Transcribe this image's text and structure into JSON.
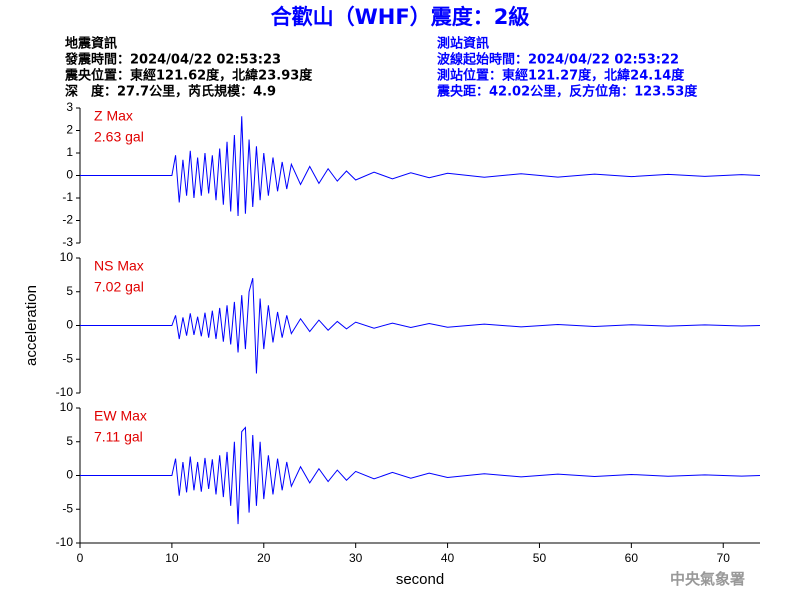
{
  "header": {
    "title": "合歡山（WHF）震度：2級",
    "left": [
      "地震資訊",
      "發震時間：2024/04/22 02:53:23",
      "震央位置：東經121.62度，北緯23.93度",
      "深　度：27.7公里，芮氏規模：4.9"
    ],
    "right": [
      "測站資訊",
      "波線起始時間：2024/04/22 02:53:22",
      "測站位置：東經121.27度，北緯24.14度",
      "震央距：42.02公里，反方位角：123.53度"
    ]
  },
  "footer": "中央氣象署",
  "chart_data": [
    {
      "type": "line",
      "annotations": [
        "Z Max",
        "2.63 gal"
      ],
      "color": "#0000ff",
      "xlim": [
        0,
        74
      ],
      "ylim": [
        -3,
        3
      ],
      "yticks": [
        -3,
        -2,
        -1,
        0,
        1,
        2,
        3
      ],
      "x": [
        0,
        10,
        10.4,
        10.8,
        11.2,
        11.6,
        12,
        12.4,
        12.8,
        13.2,
        13.6,
        14,
        14.4,
        14.8,
        15.2,
        15.6,
        16,
        16.4,
        16.8,
        17.2,
        17.6,
        18,
        18.4,
        18.8,
        19.2,
        19.6,
        20,
        20.5,
        21,
        21.5,
        22,
        22.5,
        23,
        24,
        25,
        26,
        27,
        28,
        29,
        30,
        32,
        34,
        36,
        38,
        40,
        44,
        48,
        52,
        56,
        60,
        64,
        68,
        72,
        74
      ],
      "values": [
        0,
        0,
        0.9,
        -1.2,
        0.7,
        -0.9,
        1.1,
        -1.0,
        0.8,
        -0.9,
        1.0,
        -0.8,
        0.9,
        -1.1,
        1.2,
        -1.3,
        1.5,
        -1.6,
        1.8,
        -1.8,
        2.63,
        -1.7,
        1.6,
        -1.4,
        1.3,
        -1.1,
        1.0,
        -0.9,
        0.8,
        -0.7,
        0.6,
        -0.6,
        0.5,
        -0.4,
        0.4,
        -0.35,
        0.3,
        -0.25,
        0.2,
        -0.2,
        0.15,
        -0.15,
        0.12,
        -0.1,
        0.1,
        -0.08,
        0.08,
        -0.07,
        0.06,
        -0.05,
        0.05,
        -0.04,
        0.04,
        0
      ]
    },
    {
      "type": "line",
      "annotations": [
        "NS Max",
        "7.02 gal"
      ],
      "color": "#0000ff",
      "ylabel": "acceleration",
      "xlim": [
        0,
        74
      ],
      "ylim": [
        -10,
        10
      ],
      "yticks": [
        -10,
        -5,
        0,
        5,
        10
      ],
      "x": [
        0,
        10,
        10.4,
        10.8,
        11.2,
        11.6,
        12,
        12.4,
        12.8,
        13.2,
        13.6,
        14,
        14.4,
        14.8,
        15.2,
        15.6,
        16,
        16.4,
        16.8,
        17.2,
        17.6,
        18,
        18.4,
        18.8,
        19.2,
        19.6,
        20,
        20.5,
        21,
        21.5,
        22,
        22.5,
        23,
        24,
        25,
        26,
        27,
        28,
        29,
        30,
        32,
        34,
        36,
        38,
        40,
        44,
        48,
        52,
        56,
        60,
        64,
        68,
        72,
        74
      ],
      "values": [
        0,
        0,
        1.5,
        -2,
        1.2,
        -1.5,
        1.8,
        -1.4,
        1.3,
        -1.6,
        1.9,
        -1.8,
        2.2,
        -2.0,
        2.6,
        -2.4,
        3.0,
        -2.8,
        3.5,
        -4.0,
        4.5,
        -3.5,
        5.0,
        7.02,
        -7.1,
        4.0,
        -3.5,
        3.0,
        -2.5,
        2.0,
        -1.8,
        1.5,
        -1.2,
        1.0,
        -0.9,
        0.8,
        -0.7,
        0.6,
        -0.5,
        0.5,
        -0.4,
        0.35,
        -0.3,
        0.3,
        -0.25,
        0.2,
        -0.2,
        0.15,
        -0.15,
        0.12,
        -0.1,
        0.1,
        -0.08,
        0
      ]
    },
    {
      "type": "line",
      "annotations": [
        "EW Max",
        "7.11 gal"
      ],
      "color": "#0000ff",
      "xlabel": "second",
      "xlim": [
        0,
        74
      ],
      "xticks": [
        0,
        10,
        20,
        30,
        40,
        50,
        60,
        70
      ],
      "ylim": [
        -10,
        10
      ],
      "yticks": [
        -10,
        -5,
        0,
        5,
        10
      ],
      "x": [
        0,
        10,
        10.4,
        10.8,
        11.2,
        11.6,
        12,
        12.4,
        12.8,
        13.2,
        13.6,
        14,
        14.4,
        14.8,
        15.2,
        15.6,
        16,
        16.4,
        16.8,
        17.2,
        17.6,
        18,
        18.4,
        18.8,
        19.2,
        19.6,
        20,
        20.5,
        21,
        21.5,
        22,
        22.5,
        23,
        24,
        25,
        26,
        27,
        28,
        29,
        30,
        32,
        34,
        36,
        38,
        40,
        44,
        48,
        52,
        56,
        60,
        64,
        68,
        72,
        74
      ],
      "values": [
        0,
        0,
        2.5,
        -3.0,
        2.0,
        -2.5,
        2.8,
        -2.2,
        2.0,
        -2.4,
        2.6,
        -2.0,
        2.4,
        -2.8,
        3.0,
        -3.2,
        3.5,
        -4.5,
        5.0,
        -7.2,
        6.5,
        7.11,
        -5.5,
        6.0,
        -4.5,
        5.0,
        -3.5,
        3.0,
        -2.8,
        2.5,
        -2.2,
        2.0,
        -1.6,
        1.3,
        -1.1,
        1.0,
        -0.9,
        0.8,
        -0.7,
        0.6,
        -0.5,
        0.45,
        -0.4,
        0.35,
        -0.3,
        0.25,
        -0.2,
        0.2,
        -0.15,
        0.15,
        -0.12,
        0.1,
        -0.1,
        0
      ]
    }
  ]
}
